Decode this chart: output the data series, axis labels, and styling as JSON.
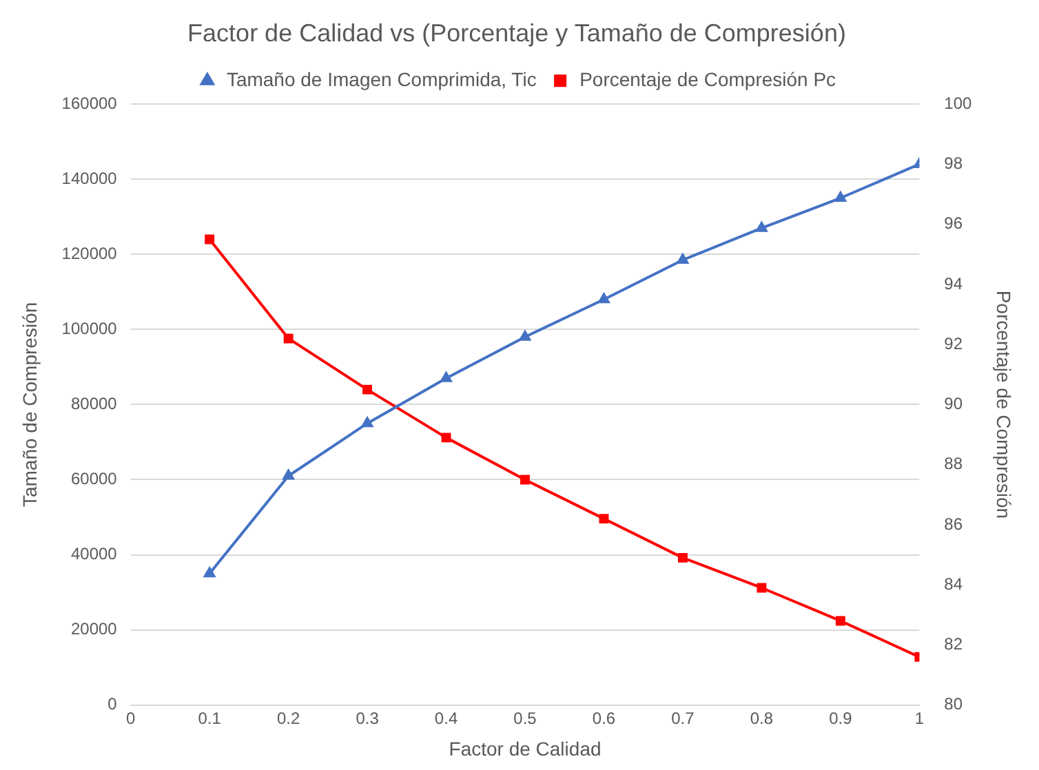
{
  "chart_data": {
    "type": "line",
    "title": "Factor de Calidad vs (Porcentaje y Tamaño de Compresión)",
    "xlabel": "Factor de Calidad",
    "ylabel": "Tamaño de Compresión",
    "y2label": "Porcentaje de Compresión",
    "x": [
      0.1,
      0.2,
      0.3,
      0.4,
      0.5,
      0.6,
      0.7,
      0.8,
      0.9,
      1
    ],
    "series": [
      {
        "name": "Tamaño de Imagen Comprimida, Tic",
        "color": "#4472c4",
        "marker": "triangle",
        "values": [
          35000,
          61000,
          75000,
          87000,
          98000,
          108000,
          118500,
          127000,
          135000,
          144000
        ]
      },
      {
        "name": "Porcentaje de Compresión Pc",
        "color": "#ff0000",
        "marker": "square",
        "axis": "y2",
        "values": [
          95.5,
          92.2,
          90.5,
          88.9,
          87.5,
          86.2,
          84.9,
          83.9,
          82.8,
          81.6
        ]
      }
    ],
    "xlim": [
      0,
      1
    ],
    "xticks": [
      0,
      0.1,
      0.2,
      0.3,
      0.4,
      0.5,
      0.6,
      0.7,
      0.8,
      0.9,
      1
    ],
    "ylim": [
      0,
      160000
    ],
    "yticks": [
      0,
      20000,
      40000,
      60000,
      80000,
      100000,
      120000,
      140000,
      160000
    ],
    "y2lim": [
      80,
      100
    ],
    "y2ticks": [
      80,
      82,
      84,
      86,
      88,
      90,
      92,
      94,
      96,
      98,
      100
    ],
    "grid": "y",
    "legend": "top",
    "line_style": "solid"
  }
}
